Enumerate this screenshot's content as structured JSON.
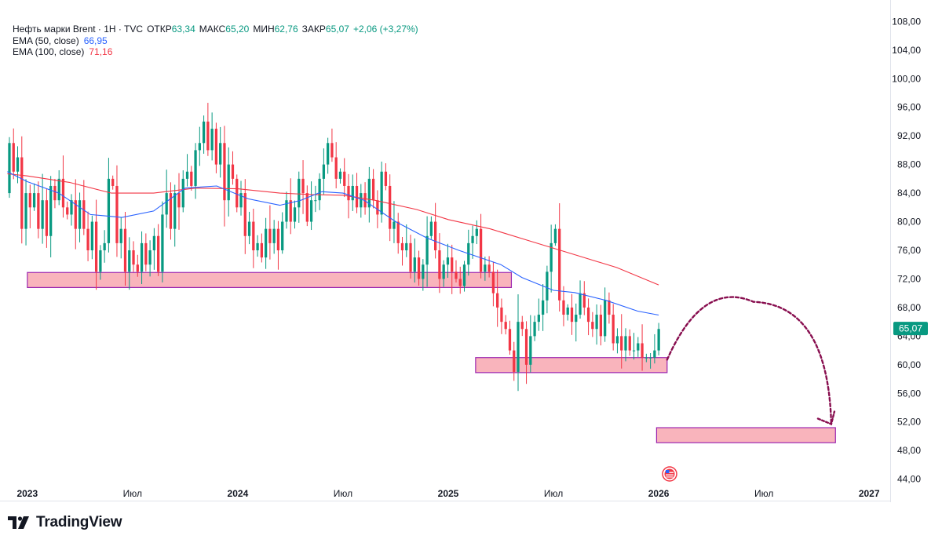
{
  "header": {
    "symbol": "Нефть марки Brent · 1H · TVC",
    "open_label": "ОТКР",
    "open": "63,34",
    "high_label": "МАКС",
    "high": "65,20",
    "low_label": "МИН",
    "low": "62,76",
    "close_label": "ЗАКР",
    "close": "65,07",
    "change": "+2,06 (+3,27%)"
  },
  "indicators": [
    {
      "label": "EMA (50, close)",
      "value": "66,95",
      "color": "#2962ff"
    },
    {
      "label": "EMA (100, close)",
      "value": "71,16",
      "color": "#f23645"
    }
  ],
  "price_badge": "65,07",
  "footer": {
    "brand": "TradingView"
  },
  "colors": {
    "up": "#089981",
    "down": "#f23645",
    "zone_fill": "#f9b4bc",
    "zone_border": "#9c27b0",
    "arrow": "#880e4f"
  },
  "chart_data": {
    "type": "candlestick",
    "title": "Нефть марки Brent · 1H · TVC",
    "y_axis": {
      "ylim": [
        41.0,
        111.0
      ],
      "ticks": [
        "108,00",
        "104,00",
        "100,00",
        "96,00",
        "92,00",
        "88,00",
        "84,00",
        "80,00",
        "76,00",
        "72,00",
        "68,00",
        "64,00",
        "60,00",
        "56,00",
        "52,00",
        "48,00",
        "44,00"
      ]
    },
    "x_axis": {
      "xlim": [
        2022.9,
        2027.1
      ],
      "labels": [
        {
          "text": "2023",
          "t": 2023.0,
          "bold": true
        },
        {
          "text": "Июл",
          "t": 2023.5,
          "bold": false
        },
        {
          "text": "2024",
          "t": 2024.0,
          "bold": true
        },
        {
          "text": "Июл",
          "t": 2024.5,
          "bold": false
        },
        {
          "text": "2025",
          "t": 2025.0,
          "bold": true
        },
        {
          "text": "Июл",
          "t": 2025.5,
          "bold": false
        },
        {
          "text": "2026",
          "t": 2026.0,
          "bold": true
        },
        {
          "text": "Июл",
          "t": 2026.5,
          "bold": false
        },
        {
          "text": "2027",
          "t": 2027.0,
          "bold": true
        }
      ]
    },
    "closes_start": {
      "t": 2022.905,
      "price": 84.0
    },
    "closes": [
      91,
      87,
      89,
      79,
      84,
      82,
      84,
      79,
      83,
      78,
      85,
      83,
      86,
      82,
      81,
      83,
      79,
      83,
      79,
      76,
      80,
      73,
      76,
      77,
      86,
      85,
      77,
      79,
      73,
      76,
      74,
      73,
      77,
      74,
      76,
      78,
      73,
      81,
      84,
      79,
      84,
      82,
      86,
      87,
      85,
      90,
      91,
      94,
      90,
      93,
      88,
      91,
      83,
      88,
      86,
      82,
      84,
      78,
      80,
      76,
      77,
      75,
      79,
      77,
      79,
      76,
      80,
      83,
      80,
      82,
      86,
      84,
      80,
      83,
      83,
      86,
      88,
      91,
      89,
      86,
      87,
      85,
      83,
      85,
      82,
      84,
      82,
      86,
      83,
      81,
      87,
      85,
      79,
      80,
      77,
      76,
      77,
      73,
      75,
      72,
      74,
      78,
      80,
      76,
      72,
      74,
      75,
      73,
      72,
      71,
      74,
      77,
      78,
      79,
      73,
      74,
      73,
      70,
      68,
      66,
      65,
      62,
      59,
      66,
      65,
      60,
      64,
      66,
      67,
      69,
      73,
      77,
      79,
      69,
      67,
      68,
      66,
      67,
      70,
      68,
      66,
      65,
      67,
      64,
      69,
      67,
      63,
      64,
      62,
      64,
      62,
      62,
      63,
      61,
      61,
      61,
      62,
      65
    ],
    "ema50": [
      [
        2022.905,
        87.0
      ],
      [
        2023.0,
        85.6
      ],
      [
        2023.15,
        84.0
      ],
      [
        2023.3,
        81.0
      ],
      [
        2023.45,
        80.6
      ],
      [
        2023.6,
        81.5
      ],
      [
        2023.75,
        84.7
      ],
      [
        2023.9,
        85.0
      ],
      [
        2024.05,
        83.2
      ],
      [
        2024.2,
        82.3
      ],
      [
        2024.3,
        83.0
      ],
      [
        2024.4,
        84.2
      ],
      [
        2024.5,
        84.0
      ],
      [
        2024.6,
        83.0
      ],
      [
        2024.75,
        80.0
      ],
      [
        2024.9,
        77.7
      ],
      [
        2025.05,
        76.0
      ],
      [
        2025.15,
        75.0
      ],
      [
        2025.25,
        74.0
      ],
      [
        2025.35,
        72.2
      ],
      [
        2025.5,
        70.4
      ],
      [
        2025.6,
        70.1
      ],
      [
        2025.75,
        69.0
      ],
      [
        2025.9,
        67.5
      ],
      [
        2026.0,
        66.95
      ]
    ],
    "ema100": [
      [
        2022.905,
        86.7
      ],
      [
        2023.0,
        86.4
      ],
      [
        2023.2,
        85.5
      ],
      [
        2023.4,
        84.0
      ],
      [
        2023.6,
        84.0
      ],
      [
        2023.8,
        84.7
      ],
      [
        2024.0,
        84.6
      ],
      [
        2024.2,
        84.0
      ],
      [
        2024.35,
        83.8
      ],
      [
        2024.5,
        83.7
      ],
      [
        2024.65,
        83.0
      ],
      [
        2024.85,
        81.7
      ],
      [
        2025.0,
        80.3
      ],
      [
        2025.2,
        79.0
      ],
      [
        2025.4,
        77.2
      ],
      [
        2025.6,
        75.4
      ],
      [
        2025.8,
        73.6
      ],
      [
        2026.0,
        71.16
      ]
    ],
    "zones": [
      {
        "t0": 2023.0,
        "t1": 2025.3,
        "top": 72.9,
        "bottom": 70.8
      },
      {
        "t0": 2025.13,
        "t1": 2026.04,
        "top": 61.0,
        "bottom": 58.9
      },
      {
        "t0": 2025.99,
        "t1": 2026.84,
        "top": 51.2,
        "bottom": 49.1
      }
    ],
    "forecast_arrow": {
      "from": [
        2026.04,
        60.7
      ],
      "via": [
        2026.45,
        68.8
      ],
      "to": [
        2026.82,
        51.7
      ]
    }
  }
}
